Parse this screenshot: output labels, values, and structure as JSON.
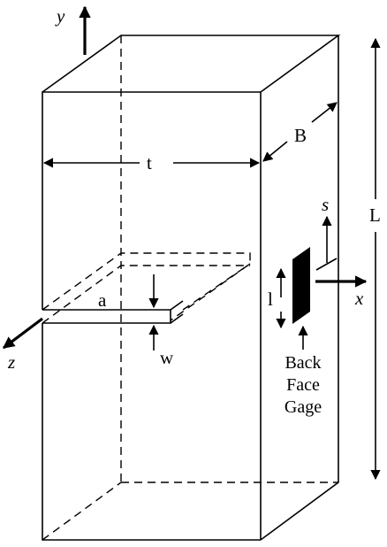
{
  "labels": {
    "y_axis": "y",
    "x_axis": "x",
    "z_axis": "z",
    "s_axis": "s",
    "thickness": "t",
    "width": "B",
    "length": "L",
    "crack_length": "a",
    "notch_width": "w",
    "gage_length": "l",
    "gage_caption": [
      "Back",
      "Face",
      "Gage"
    ]
  }
}
